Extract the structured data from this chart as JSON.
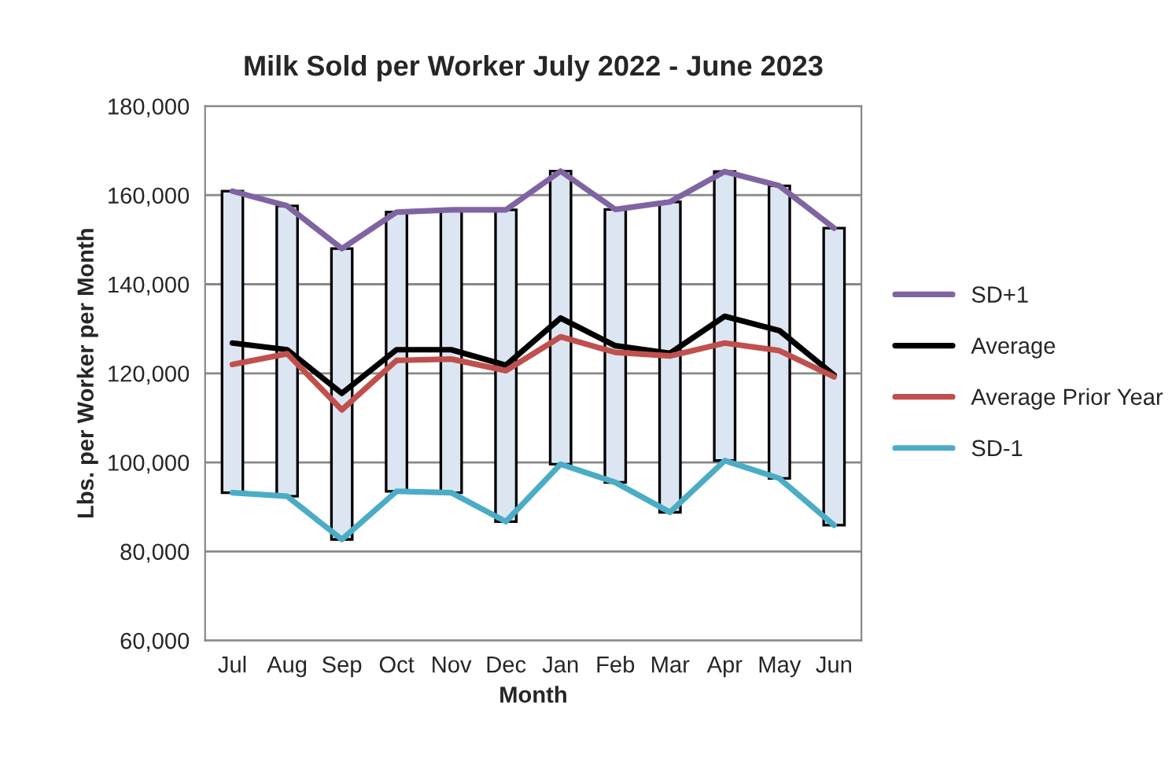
{
  "chart_data": {
    "type": "line",
    "title": "Milk Sold per Worker July 2022 - June 2023",
    "xlabel": "Month",
    "ylabel": "Lbs. per Worker per Month",
    "categories": [
      "Jul",
      "Aug",
      "Sep",
      "Oct",
      "Nov",
      "Dec",
      "Jan",
      "Feb",
      "Mar",
      "Apr",
      "May",
      "Jun"
    ],
    "series": [
      {
        "type": "bar",
        "color": "#dce6f2",
        "base": [
          93200,
          92400,
          82700,
          93500,
          93200,
          86700,
          99600,
          95500,
          88800,
          100400,
          96400,
          85900
        ],
        "values": [
          67700,
          65200,
          65300,
          62700,
          63500,
          70000,
          65800,
          61300,
          69700,
          64900,
          65700,
          66700
        ]
      },
      {
        "name": "SD+1",
        "color": "#8064a2",
        "values": [
          160900,
          157600,
          148000,
          156200,
          156700,
          156700,
          165400,
          156800,
          158500,
          165300,
          162100,
          152600
        ]
      },
      {
        "name": "Average",
        "color": "#000000",
        "values": [
          126800,
          125300,
          115500,
          125300,
          125300,
          121800,
          132400,
          126200,
          124500,
          132800,
          129600,
          119600
        ]
      },
      {
        "name": "Average Prior Year",
        "color": "#c0504d",
        "values": [
          122000,
          124400,
          111800,
          122900,
          123200,
          120600,
          128200,
          124700,
          123900,
          126800,
          125100,
          119200
        ]
      },
      {
        "name": "SD-1",
        "color": "#4bacc6",
        "values": [
          93200,
          92400,
          82700,
          93500,
          93200,
          86700,
          99600,
          95500,
          88800,
          100400,
          96400,
          85900
        ]
      }
    ],
    "ylim": [
      60000,
      180000
    ],
    "yticks": [
      {
        "value": 60000,
        "label": "60,000"
      },
      {
        "value": 80000,
        "label": "80,000"
      },
      {
        "value": 100000,
        "label": "100,000"
      },
      {
        "value": 120000,
        "label": "120,000"
      },
      {
        "value": 140000,
        "label": "140,000"
      },
      {
        "value": 160000,
        "label": "160,000"
      },
      {
        "value": 180000,
        "label": "180,000"
      }
    ],
    "grid": "y",
    "legend": "right",
    "marker": "none",
    "line_style": "solid"
  }
}
